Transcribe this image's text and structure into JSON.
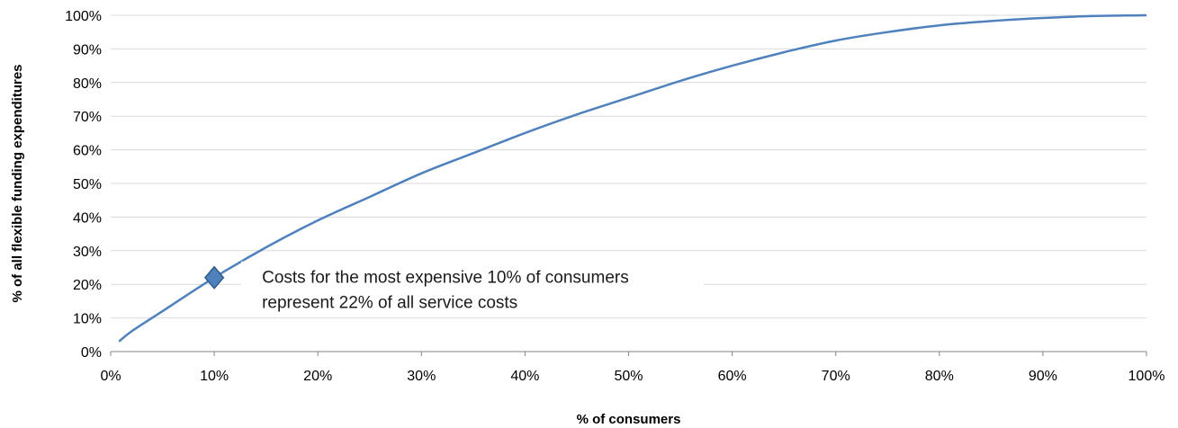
{
  "chart_data": {
    "type": "line",
    "xlabel": "% of consumers",
    "ylabel": "% of all flexible funding expenditures",
    "xlim": [
      0,
      100
    ],
    "ylim": [
      0,
      100
    ],
    "x_ticks": [
      "0%",
      "10%",
      "20%",
      "30%",
      "40%",
      "50%",
      "60%",
      "70%",
      "80%",
      "90%",
      "100%"
    ],
    "y_ticks": [
      "0%",
      "10%",
      "20%",
      "30%",
      "40%",
      "50%",
      "60%",
      "70%",
      "80%",
      "90%",
      "100%"
    ],
    "grid": "horizontal",
    "series": [
      {
        "color": "#4f81bd",
        "x": [
          0.8,
          2,
          5,
          10,
          15,
          20,
          25,
          30,
          35,
          40,
          45,
          50,
          55,
          60,
          65,
          70,
          75,
          80,
          85,
          90,
          95,
          100
        ],
        "y": [
          3,
          6,
          12,
          22,
          31,
          39,
          46,
          53,
          59,
          65,
          70.5,
          75.5,
          80.5,
          85,
          89,
          92.5,
          95,
          97,
          98.3,
          99.2,
          99.8,
          100
        ]
      }
    ],
    "highlight": {
      "x": 10,
      "y": 22,
      "marker": "diamond",
      "color": "#4f81bd",
      "label_lines": [
        "Costs for the most expensive 10% of consumers",
        "represent 22% of all service costs"
      ]
    }
  }
}
